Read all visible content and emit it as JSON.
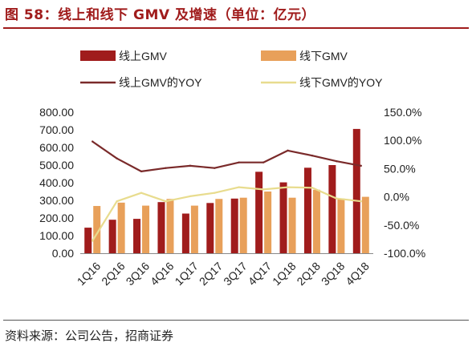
{
  "title": "图 58：线上和线下 GMV 及增速（单位：亿元）",
  "source": "资料来源：公司公告，招商证券",
  "colors": {
    "online_bar": "#a01c1c",
    "offline_bar": "#e8a05a",
    "online_line": "#7a2a2a",
    "offline_line": "#e8dc8e",
    "title": "#a01c1c"
  },
  "chart_data": {
    "type": "bar+line",
    "categories": [
      "1Q16",
      "2Q16",
      "3Q16",
      "4Q16",
      "1Q17",
      "2Q17",
      "3Q17",
      "4Q17",
      "1Q18",
      "2Q18",
      "3Q18",
      "4Q18"
    ],
    "series": [
      {
        "name": "线上GMV",
        "kind": "bar",
        "axis": "left",
        "values": [
          145,
          190,
          195,
          290,
          225,
          285,
          310,
          462,
          402,
          485,
          500,
          705
        ]
      },
      {
        "name": "线下GMV",
        "kind": "bar",
        "axis": "left",
        "values": [
          268,
          287,
          270,
          308,
          270,
          308,
          315,
          350,
          315,
          360,
          310,
          320
        ]
      },
      {
        "name": "线上GMV的YOY",
        "kind": "line",
        "axis": "right",
        "values": [
          0.98,
          0.68,
          0.45,
          0.51,
          0.55,
          0.51,
          0.61,
          0.61,
          0.82,
          0.73,
          0.63,
          0.55
        ]
      },
      {
        "name": "线下GMV的YOY",
        "kind": "line",
        "axis": "right",
        "values": [
          -0.78,
          -0.08,
          0.07,
          -0.08,
          0.01,
          0.07,
          0.17,
          0.13,
          0.17,
          0.16,
          -0.03,
          -0.08
        ]
      }
    ],
    "y_left": {
      "min": 0,
      "max": 800,
      "step": 100,
      "ticks": [
        "0.00",
        "100.00",
        "200.00",
        "300.00",
        "400.00",
        "500.00",
        "600.00",
        "700.00",
        "800.00"
      ]
    },
    "y_right": {
      "min": -1.0,
      "max": 1.5,
      "step": 0.5,
      "ticks": [
        "-100.0%",
        "-50.0%",
        "0.0%",
        "50.0%",
        "100.0%",
        "150.0%"
      ]
    },
    "legend_position": "top",
    "grid": false
  }
}
